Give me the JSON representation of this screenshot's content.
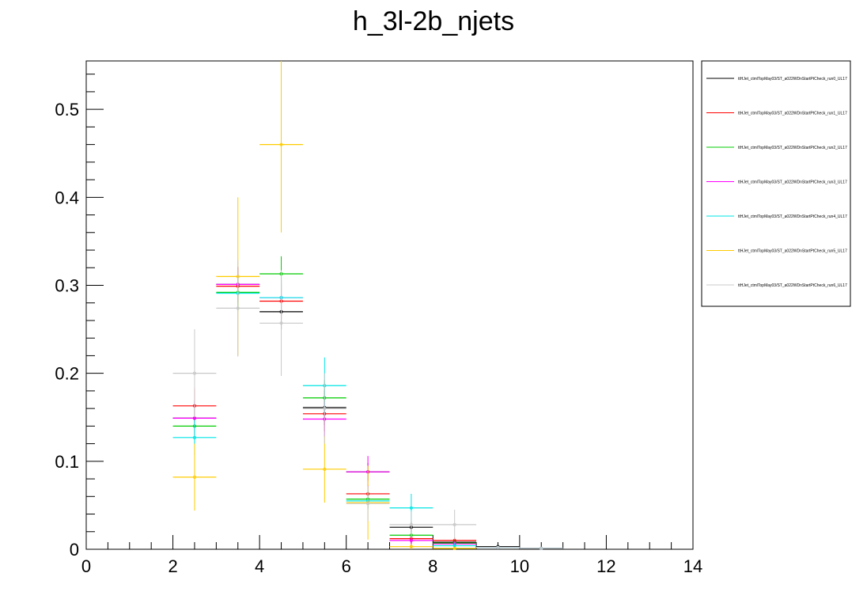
{
  "chart_data": {
    "type": "line",
    "title": "h_3l-2b_njets",
    "xlabel": "",
    "ylabel": "",
    "xlim": [
      0,
      14
    ],
    "ylim": [
      0,
      0.555
    ],
    "grid": false,
    "legend_position": "top-right",
    "x_ticks": [
      "0",
      "2",
      "4",
      "6",
      "8",
      "10",
      "12",
      "14"
    ],
    "y_ticks": [
      "0",
      "0.1",
      "0.2",
      "0.3",
      "0.4",
      "0.5"
    ],
    "bins": [
      [
        2,
        3
      ],
      [
        3,
        4
      ],
      [
        4,
        5
      ],
      [
        5,
        6
      ],
      [
        6,
        7
      ],
      [
        7,
        8
      ],
      [
        8,
        9
      ],
      [
        9,
        10
      ],
      [
        10,
        11
      ],
      [
        11,
        12
      ]
    ],
    "series": [
      {
        "name": "ttHJet_ctmlTopMay03/ST_a022WDnStartPtCheck_run0_UL17",
        "color": "#000000",
        "values": [
          0.149,
          0.301,
          0.27,
          0.161,
          0.088,
          0.025,
          0.008,
          0.003,
          0.001,
          0.0
        ],
        "errors": [
          0.02,
          0.02,
          0.02,
          0.02,
          0.01,
          0.006,
          0.003,
          0.001,
          0.001,
          0.0
        ]
      },
      {
        "name": "ttHJet_ctmlTopMay03/ST_a022WDnStartPtCheck_run1_UL17",
        "color": "#ff0000",
        "values": [
          0.163,
          0.299,
          0.282,
          0.154,
          0.063,
          0.012,
          0.01,
          0.002,
          0.001,
          0.0
        ],
        "errors": [
          0.02,
          0.02,
          0.02,
          0.02,
          0.01,
          0.005,
          0.003,
          0.001,
          0.001,
          0.0
        ]
      },
      {
        "name": "ttHJet_ctmlTopMay03/ST_a022WDnStartPtCheck_run2_UL17",
        "color": "#00cc00",
        "values": [
          0.14,
          0.292,
          0.313,
          0.172,
          0.057,
          0.016,
          0.007,
          0.002,
          0.001,
          0.0
        ],
        "errors": [
          0.02,
          0.02,
          0.02,
          0.02,
          0.01,
          0.005,
          0.003,
          0.001,
          0.001,
          0.0
        ]
      },
      {
        "name": "ttHJet_ctmlTopMay03/ST_a022WDnStartPtCheck_run3_UL17",
        "color": "#ff00ff",
        "values": [
          0.149,
          0.301,
          0.286,
          0.148,
          0.088,
          0.01,
          0.006,
          0.002,
          0.001,
          0.0
        ],
        "errors": [
          0.02,
          0.02,
          0.02,
          0.02,
          0.018,
          0.005,
          0.003,
          0.001,
          0.001,
          0.0
        ]
      },
      {
        "name": "ttHJet_ctmlTopMay03/ST_a022WDnStartPtCheck_run4_UL17",
        "color": "#00e5e5",
        "values": [
          0.127,
          0.291,
          0.286,
          0.186,
          0.055,
          0.047,
          0.004,
          0.002,
          0.001,
          0.0
        ],
        "errors": [
          0.02,
          0.02,
          0.02,
          0.032,
          0.01,
          0.016,
          0.003,
          0.001,
          0.001,
          0.0
        ]
      },
      {
        "name": "ttHJet_ctmlTopMay03/ST_a022WDnStartPtCheck_run5_UL17",
        "color": "#ffcc00",
        "values": [
          0.082,
          0.31,
          0.46,
          0.091,
          0.053,
          0.003,
          0.001,
          0.0,
          0.0,
          0.0
        ],
        "errors": [
          0.038,
          0.09,
          0.1,
          0.038,
          0.042,
          0.003,
          0.001,
          0.0,
          0.0,
          0.0
        ]
      },
      {
        "name": "ttHJet_ctmlTopMay03/ST_a022WDnStartPtCheck_run6_UL17",
        "color": "#c8c8c8",
        "values": [
          0.2,
          0.274,
          0.257,
          0.16,
          0.052,
          0.028,
          0.028,
          0.002,
          0.001,
          0.0
        ],
        "errors": [
          0.05,
          0.055,
          0.06,
          0.04,
          0.02,
          0.015,
          0.017,
          0.001,
          0.001,
          0.0
        ]
      }
    ]
  }
}
